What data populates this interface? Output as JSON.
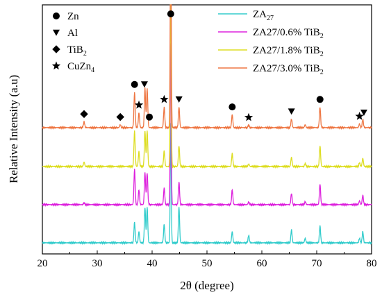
{
  "chart_data": {
    "type": "line",
    "xlabel": "2θ (degree)",
    "ylabel": "Relative Intensity (a.u)",
    "xlim": [
      20,
      80
    ],
    "xticks": [
      20,
      30,
      40,
      50,
      60,
      70,
      80
    ],
    "xtick_labels": [
      "20",
      "30",
      "40",
      "50",
      "60",
      "70",
      "80"
    ],
    "y_tick_labels_shown": false,
    "grid": false,
    "legend_placement": "top-right",
    "marker_legend_placement": "top-left",
    "series": [
      {
        "name": "ZA27",
        "color": "#33cccc",
        "baseline": 0,
        "peaks": [
          {
            "x": 27.6,
            "h": 0.0
          },
          {
            "x": 36.8,
            "h": 0.55
          },
          {
            "x": 37.6,
            "h": 0.3
          },
          {
            "x": 38.7,
            "h": 0.95
          },
          {
            "x": 39.1,
            "h": 0.95
          },
          {
            "x": 42.2,
            "h": 0.5
          },
          {
            "x": 43.4,
            "h": 3.2
          },
          {
            "x": 44.9,
            "h": 0.95
          },
          {
            "x": 54.6,
            "h": 0.3
          },
          {
            "x": 57.6,
            "h": 0.2
          },
          {
            "x": 65.4,
            "h": 0.35
          },
          {
            "x": 67.9,
            "h": 0.12
          },
          {
            "x": 70.6,
            "h": 0.45
          },
          {
            "x": 77.8,
            "h": 0.12
          },
          {
            "x": 78.4,
            "h": 0.3
          }
        ]
      },
      {
        "name": "ZA27/0.6% TiB2",
        "color": "#dd22dd",
        "baseline": 1,
        "peaks": [
          {
            "x": 27.6,
            "h": 0.05
          },
          {
            "x": 36.8,
            "h": 0.95
          },
          {
            "x": 37.6,
            "h": 0.4
          },
          {
            "x": 38.7,
            "h": 0.85
          },
          {
            "x": 39.1,
            "h": 0.85
          },
          {
            "x": 42.2,
            "h": 0.45
          },
          {
            "x": 43.4,
            "h": 4.3
          },
          {
            "x": 44.9,
            "h": 0.6
          },
          {
            "x": 54.6,
            "h": 0.4
          },
          {
            "x": 57.6,
            "h": 0.07
          },
          {
            "x": 65.4,
            "h": 0.3
          },
          {
            "x": 67.9,
            "h": 0.08
          },
          {
            "x": 70.6,
            "h": 0.55
          },
          {
            "x": 77.8,
            "h": 0.1
          },
          {
            "x": 78.4,
            "h": 0.25
          }
        ]
      },
      {
        "name": "ZA27/1.8% TiB2",
        "color": "#dddd22",
        "baseline": 2,
        "peaks": [
          {
            "x": 27.6,
            "h": 0.12
          },
          {
            "x": 36.8,
            "h": 0.95
          },
          {
            "x": 37.6,
            "h": 0.4
          },
          {
            "x": 38.7,
            "h": 0.95
          },
          {
            "x": 39.1,
            "h": 0.95
          },
          {
            "x": 42.2,
            "h": 0.42
          },
          {
            "x": 43.4,
            "h": 5.3
          },
          {
            "x": 44.9,
            "h": 0.55
          },
          {
            "x": 54.6,
            "h": 0.35
          },
          {
            "x": 57.6,
            "h": 0.07
          },
          {
            "x": 65.4,
            "h": 0.25
          },
          {
            "x": 67.9,
            "h": 0.08
          },
          {
            "x": 70.6,
            "h": 0.55
          },
          {
            "x": 77.8,
            "h": 0.1
          },
          {
            "x": 78.4,
            "h": 0.22
          }
        ]
      },
      {
        "name": "ZA27/3.0% TiB2",
        "color": "#ee7744",
        "baseline": 3,
        "peaks": [
          {
            "x": 27.6,
            "h": 0.16
          },
          {
            "x": 34.2,
            "h": 0.08
          },
          {
            "x": 36.8,
            "h": 0.95
          },
          {
            "x": 37.6,
            "h": 0.4
          },
          {
            "x": 38.7,
            "h": 1.05
          },
          {
            "x": 39.1,
            "h": 1.05
          },
          {
            "x": 42.2,
            "h": 0.55
          },
          {
            "x": 43.4,
            "h": 6.3
          },
          {
            "x": 44.9,
            "h": 0.55
          },
          {
            "x": 54.6,
            "h": 0.35
          },
          {
            "x": 57.6,
            "h": 0.07
          },
          {
            "x": 65.4,
            "h": 0.23
          },
          {
            "x": 67.9,
            "h": 0.08
          },
          {
            "x": 70.6,
            "h": 0.55
          },
          {
            "x": 77.8,
            "h": 0.1
          },
          {
            "x": 78.4,
            "h": 0.22
          }
        ]
      }
    ],
    "phase_legend": [
      {
        "symbol": "circle",
        "label": "Zn"
      },
      {
        "symbol": "triangle-down",
        "label": "Al"
      },
      {
        "symbol": "diamond",
        "label": "TiB2"
      },
      {
        "symbol": "star",
        "label": "CuZn4"
      }
    ],
    "phase_annotations": [
      {
        "symbol": "diamond",
        "x": 27.6
      },
      {
        "symbol": "diamond",
        "x": 34.2
      },
      {
        "symbol": "circle",
        "x": 36.8
      },
      {
        "symbol": "star",
        "x": 37.6
      },
      {
        "symbol": "triangle-down",
        "x": 38.6
      },
      {
        "symbol": "circle",
        "x": 39.5
      },
      {
        "symbol": "star",
        "x": 42.2
      },
      {
        "symbol": "circle",
        "x": 43.4
      },
      {
        "symbol": "triangle-down",
        "x": 44.9
      },
      {
        "symbol": "circle",
        "x": 54.6
      },
      {
        "symbol": "star",
        "x": 57.6
      },
      {
        "symbol": "triangle-down",
        "x": 65.4
      },
      {
        "symbol": "circle",
        "x": 70.6
      },
      {
        "symbol": "star",
        "x": 77.8
      },
      {
        "symbol": "triangle-down",
        "x": 78.6
      }
    ]
  }
}
